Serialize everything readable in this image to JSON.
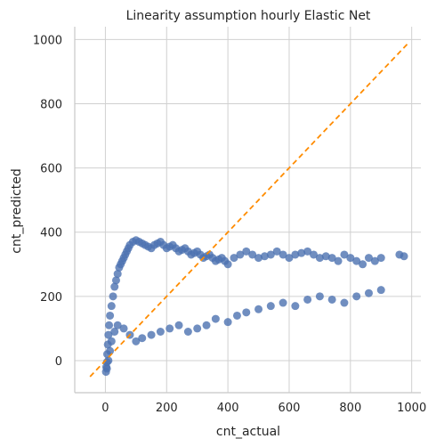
{
  "chart_data": {
    "type": "scatter",
    "title": "Linearity assumption hourly Elastic Net",
    "xlabel": "cnt_actual",
    "ylabel": "cnt_predicted",
    "xlim": [
      -100,
      1030
    ],
    "ylim": [
      -100,
      1040
    ],
    "xticks": [
      "0",
      "200",
      "400",
      "600",
      "800",
      "1000"
    ],
    "yticks": [
      "0",
      "200",
      "400",
      "600",
      "800",
      "1000"
    ],
    "grid": true,
    "point_color": "#4c72b0",
    "reference_line": {
      "x": [
        -50,
        990
      ],
      "y": [
        -50,
        990
      ],
      "color": "#ff8c00",
      "style": "dashed"
    },
    "series": [
      {
        "x": [
          2,
          3,
          5,
          6,
          8,
          10,
          12,
          15,
          20,
          25,
          30,
          35,
          40,
          45,
          50,
          55,
          60,
          65,
          70,
          75,
          80,
          90,
          100,
          110,
          120,
          130,
          140,
          150,
          160,
          170,
          180,
          190,
          200,
          210,
          220,
          230,
          240,
          250,
          260,
          270,
          280,
          290,
          300,
          310,
          320,
          330,
          340,
          350,
          360,
          370,
          380,
          390,
          400,
          420,
          440,
          460,
          480,
          500,
          520,
          540,
          560,
          580,
          600,
          620,
          640,
          660,
          680,
          700,
          720,
          740,
          760,
          780,
          800,
          820,
          840,
          860,
          880,
          900,
          960,
          975,
          5,
          10,
          15,
          20,
          30,
          40,
          60,
          80,
          100,
          120,
          150,
          180,
          210,
          240,
          270,
          300,
          330,
          360,
          400,
          430,
          460,
          500,
          540,
          580,
          620,
          660,
          700,
          740,
          780,
          820,
          860,
          900
        ],
        "y": [
          -35,
          -20,
          -5,
          20,
          50,
          80,
          110,
          140,
          170,
          200,
          230,
          250,
          270,
          290,
          300,
          310,
          320,
          330,
          340,
          350,
          360,
          370,
          375,
          370,
          365,
          360,
          355,
          350,
          360,
          365,
          370,
          360,
          350,
          355,
          360,
          350,
          340,
          345,
          350,
          340,
          330,
          335,
          340,
          330,
          320,
          325,
          330,
          320,
          310,
          315,
          320,
          310,
          300,
          320,
          330,
          340,
          330,
          320,
          325,
          330,
          340,
          330,
          320,
          330,
          335,
          340,
          330,
          320,
          325,
          320,
          310,
          330,
          320,
          310,
          300,
          320,
          310,
          320,
          330,
          325,
          -25,
          0,
          30,
          60,
          90,
          110,
          100,
          80,
          60,
          70,
          80,
          90,
          100,
          110,
          90,
          100,
          110,
          130,
          120,
          140,
          150,
          160,
          170,
          180,
          170,
          190,
          200,
          190,
          180,
          200,
          210,
          220
        ]
      }
    ]
  }
}
